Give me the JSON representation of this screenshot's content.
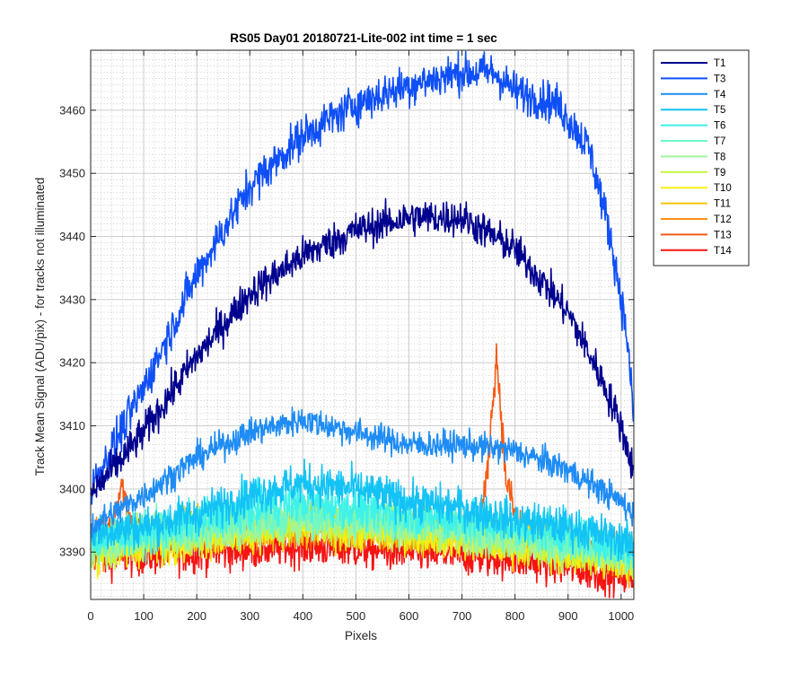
{
  "chart_data": {
    "type": "line",
    "title": "RS05 Day01 20180721-Lite-002 int time = 1 sec",
    "xlabel": "Pixels",
    "ylabel": "Track Mean Signal (ADU/pix) - for tracks not illuminated",
    "xlim": [
      0,
      1024
    ],
    "ylim": [
      3382.5,
      3469.5
    ],
    "xticks": [
      0,
      100,
      200,
      300,
      400,
      500,
      600,
      700,
      800,
      900,
      1000
    ],
    "yticks": [
      3390,
      3400,
      3410,
      3420,
      3430,
      3440,
      3450,
      3460
    ],
    "grid": "major and minor, dotted",
    "legend_position": "outside-top-right",
    "series": [
      {
        "name": "T1",
        "color": "#00008f",
        "noise": 1.8,
        "keypoints": [
          [
            0,
            3399
          ],
          [
            100,
            3409
          ],
          [
            200,
            3421
          ],
          [
            300,
            3431
          ],
          [
            400,
            3437
          ],
          [
            500,
            3441
          ],
          [
            600,
            3443
          ],
          [
            700,
            3443
          ],
          [
            800,
            3438
          ],
          [
            900,
            3428
          ],
          [
            960,
            3418
          ],
          [
            1000,
            3410
          ],
          [
            1023,
            3403
          ]
        ]
      },
      {
        "name": "T3",
        "color": "#0f4ff6",
        "noise": 2.0,
        "keypoints": [
          [
            0,
            3400
          ],
          [
            100,
            3416
          ],
          [
            200,
            3434
          ],
          [
            300,
            3448
          ],
          [
            400,
            3456
          ],
          [
            500,
            3461
          ],
          [
            600,
            3464
          ],
          [
            700,
            3466
          ],
          [
            760,
            3466
          ],
          [
            800,
            3463
          ],
          [
            880,
            3461
          ],
          [
            940,
            3454
          ],
          [
            980,
            3440
          ],
          [
            1010,
            3425
          ],
          [
            1023,
            3412
          ]
        ]
      },
      {
        "name": "T4",
        "color": "#1e8cf4",
        "noise": 1.4,
        "keypoints": [
          [
            0,
            3394
          ],
          [
            100,
            3399
          ],
          [
            200,
            3405
          ],
          [
            300,
            3409
          ],
          [
            400,
            3411
          ],
          [
            500,
            3409
          ],
          [
            600,
            3407
          ],
          [
            700,
            3407
          ],
          [
            800,
            3406
          ],
          [
            900,
            3403
          ],
          [
            1000,
            3398
          ],
          [
            1023,
            3396
          ]
        ]
      },
      {
        "name": "T5",
        "color": "#14c3f5",
        "noise": 2.0,
        "keypoints": [
          [
            0,
            3393
          ],
          [
            100,
            3394
          ],
          [
            200,
            3396
          ],
          [
            300,
            3399
          ],
          [
            400,
            3401
          ],
          [
            500,
            3400
          ],
          [
            600,
            3398
          ],
          [
            700,
            3397
          ],
          [
            800,
            3395
          ],
          [
            900,
            3394
          ],
          [
            1000,
            3392
          ],
          [
            1023,
            3391
          ]
        ]
      },
      {
        "name": "T6",
        "color": "#3ff2e9",
        "noise": 2.0,
        "keypoints": [
          [
            0,
            3392
          ],
          [
            100,
            3393
          ],
          [
            200,
            3395
          ],
          [
            300,
            3397
          ],
          [
            400,
            3398
          ],
          [
            500,
            3397
          ],
          [
            600,
            3396
          ],
          [
            700,
            3395
          ],
          [
            800,
            3394
          ],
          [
            900,
            3393
          ],
          [
            1000,
            3391
          ],
          [
            1023,
            3390
          ]
        ]
      },
      {
        "name": "T7",
        "color": "#6ff7c6",
        "noise": 2.0,
        "keypoints": [
          [
            0,
            3392
          ],
          [
            200,
            3394
          ],
          [
            400,
            3396
          ],
          [
            600,
            3395
          ],
          [
            800,
            3393
          ],
          [
            1023,
            3390
          ]
        ]
      },
      {
        "name": "T8",
        "color": "#a0f59a",
        "noise": 2.0,
        "keypoints": [
          [
            0,
            3391
          ],
          [
            200,
            3393
          ],
          [
            400,
            3395
          ],
          [
            600,
            3394
          ],
          [
            800,
            3392
          ],
          [
            1023,
            3389
          ]
        ]
      },
      {
        "name": "T9",
        "color": "#c4f53a",
        "noise": 2.0,
        "keypoints": [
          [
            0,
            3391
          ],
          [
            200,
            3393
          ],
          [
            400,
            3395
          ],
          [
            600,
            3394
          ],
          [
            800,
            3392
          ],
          [
            1023,
            3389
          ]
        ]
      },
      {
        "name": "T10",
        "color": "#f5ef14",
        "noise": 2.0,
        "keypoints": [
          [
            0,
            3390
          ],
          [
            200,
            3392
          ],
          [
            400,
            3394
          ],
          [
            600,
            3393
          ],
          [
            800,
            3391
          ],
          [
            1023,
            3388
          ]
        ]
      },
      {
        "name": "T11",
        "color": "#f7c50f",
        "noise": 2.0,
        "keypoints": [
          [
            0,
            3391
          ],
          [
            200,
            3393
          ],
          [
            400,
            3394
          ],
          [
            600,
            3393
          ],
          [
            800,
            3392
          ],
          [
            1023,
            3389
          ]
        ]
      },
      {
        "name": "T12",
        "color": "#f79212",
        "noise": 2.0,
        "keypoints": [
          [
            0,
            3391
          ],
          [
            200,
            3393
          ],
          [
            400,
            3394
          ],
          [
            600,
            3393
          ],
          [
            800,
            3392
          ],
          [
            1023,
            3389
          ]
        ]
      },
      {
        "name": "T13",
        "color": "#f55a14",
        "noise": 1.8,
        "keypoints": [
          [
            0,
            3391
          ],
          [
            40,
            3394
          ],
          [
            58,
            3401
          ],
          [
            75,
            3395
          ],
          [
            100,
            3392
          ],
          [
            200,
            3393
          ],
          [
            400,
            3394
          ],
          [
            600,
            3393
          ],
          [
            730,
            3394
          ],
          [
            745,
            3400
          ],
          [
            758,
            3414
          ],
          [
            765,
            3421
          ],
          [
            772,
            3414
          ],
          [
            782,
            3402
          ],
          [
            800,
            3396
          ],
          [
            830,
            3392
          ],
          [
            1023,
            3389
          ]
        ]
      },
      {
        "name": "T14",
        "color": "#f51412",
        "noise": 2.0,
        "keypoints": [
          [
            0,
            3389
          ],
          [
            200,
            3390
          ],
          [
            400,
            3391
          ],
          [
            600,
            3390
          ],
          [
            800,
            3389
          ],
          [
            1023,
            3386
          ]
        ]
      }
    ]
  }
}
